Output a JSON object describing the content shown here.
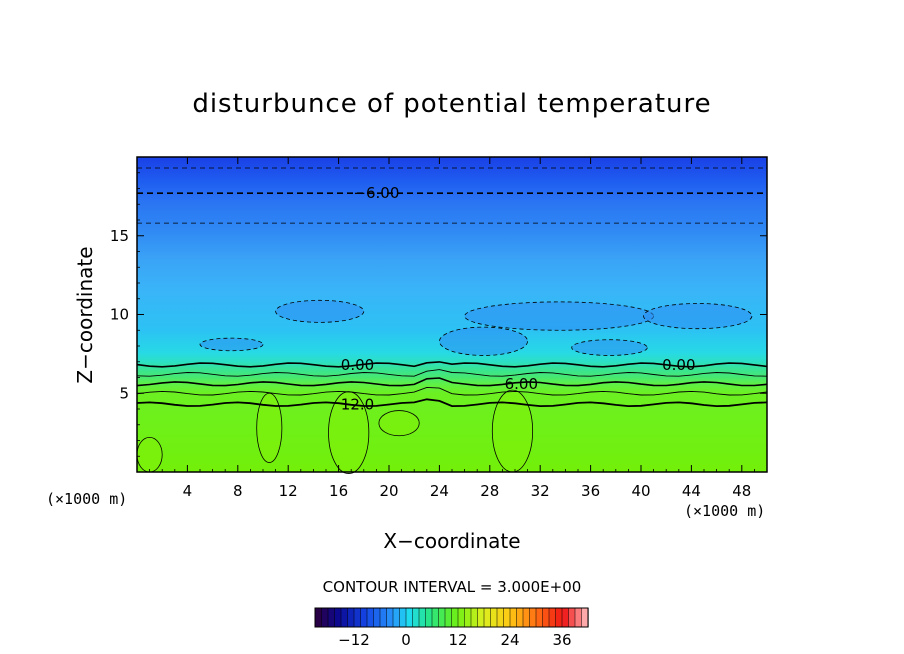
{
  "chart_data": {
    "type": "heatmap",
    "title": "disturbunce of potential temperature",
    "xlabel": "X−coordinate",
    "ylabel": "Z−coordinate",
    "x_unit": "(×1000 m)",
    "y_unit": "(×1000 m)",
    "xlim": [
      0,
      50
    ],
    "ylim": [
      0,
      20
    ],
    "x_ticks": [
      4,
      8,
      12,
      16,
      20,
      24,
      28,
      32,
      36,
      40,
      44,
      48
    ],
    "y_ticks": [
      5,
      10,
      15
    ],
    "contour_interval_text": "CONTOUR INTERVAL = 3.000E+00",
    "contour_labels": [
      {
        "text": "−6.00",
        "x": 19,
        "y": 17.7
      },
      {
        "text": "0.00",
        "x": 17.5,
        "y": 6.8
      },
      {
        "text": "0.00",
        "x": 43,
        "y": 6.8
      },
      {
        "text": "6.00",
        "x": 30.5,
        "y": 5.6
      },
      {
        "text": "12.0",
        "x": 17.5,
        "y": 4.3
      }
    ],
    "colorbar": {
      "min": -21,
      "max": 42,
      "ticks": [
        -12,
        0,
        12,
        24,
        36
      ],
      "tick_labels": [
        "−12",
        "0",
        "12",
        "24",
        "36"
      ]
    },
    "value_layers": [
      {
        "z_from": 0,
        "z_to": 4.6,
        "value": 14
      },
      {
        "z_from": 4.6,
        "z_to": 5.0,
        "value": 12
      },
      {
        "z_from": 5.0,
        "z_to": 5.6,
        "value": 9
      },
      {
        "z_from": 5.6,
        "z_to": 6.2,
        "value": 6
      },
      {
        "z_from": 6.2,
        "z_to": 6.8,
        "value": 3
      },
      {
        "z_from": 6.8,
        "z_to": 7.4,
        "value": 0
      },
      {
        "z_from": 7.4,
        "z_to": 9.2,
        "value": -1.5
      },
      {
        "z_from": 9.2,
        "z_to": 11.5,
        "value": -3
      },
      {
        "z_from": 11.5,
        "z_to": 14.0,
        "value": -3.5
      },
      {
        "z_from": 14.0,
        "z_to": 15.8,
        "value": -4.5
      },
      {
        "z_from": 15.8,
        "z_to": 17.7,
        "value": -5.2
      },
      {
        "z_from": 17.7,
        "z_to": 19.3,
        "value": -6.5
      },
      {
        "z_from": 19.3,
        "z_to": 20,
        "value": -8
      }
    ]
  }
}
